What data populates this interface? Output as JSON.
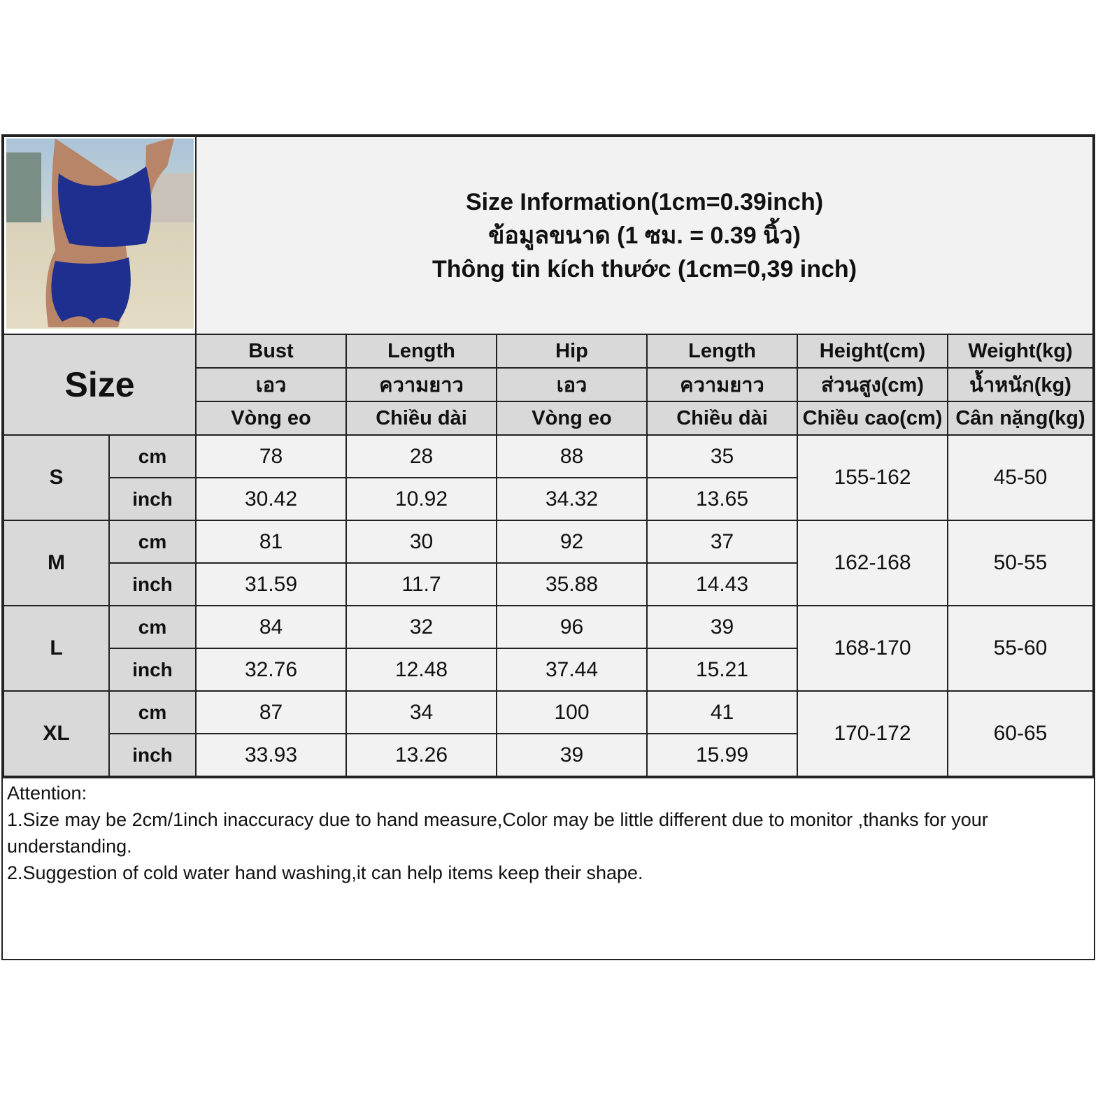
{
  "title_lines": [
    "Size Information(1cm=0.39inch)",
    "ข้อมูลขนาด (1 ซม. = 0.39 นิ้ว)",
    "Thông tin kích thước (1cm=0,39 inch)"
  ],
  "size_label": "Size",
  "columns": [
    {
      "en": "Bust",
      "th": "เอว",
      "vi": "Vòng eo"
    },
    {
      "en": "Length",
      "th": "ความยาว",
      "vi": "Chiều dài"
    },
    {
      "en": "Hip",
      "th": "เอว",
      "vi": "Vòng eo"
    },
    {
      "en": "Length",
      "th": "ความยาว",
      "vi": "Chiều dài"
    },
    {
      "en": "Height(cm)",
      "th": "ส่วนสูง(cm)",
      "vi": "Chiều cao(cm)"
    },
    {
      "en": "Weight(kg)",
      "th": "น้ำหนัก(kg)",
      "vi": "Cân nặng(kg)"
    }
  ],
  "units": [
    "cm",
    "inch"
  ],
  "sizes": [
    {
      "size": "S",
      "cm": [
        "78",
        "28",
        "88",
        "35"
      ],
      "inch": [
        "30.42",
        "10.92",
        "34.32",
        "13.65"
      ],
      "height": "155-162",
      "weight": "45-50"
    },
    {
      "size": "M",
      "cm": [
        "81",
        "30",
        "92",
        "37"
      ],
      "inch": [
        "31.59",
        "11.7",
        "35.88",
        "14.43"
      ],
      "height": "162-168",
      "weight": "50-55"
    },
    {
      "size": "L",
      "cm": [
        "84",
        "32",
        "96",
        "39"
      ],
      "inch": [
        "32.76",
        "12.48",
        "37.44",
        "15.21"
      ],
      "height": "168-170",
      "weight": "55-60"
    },
    {
      "size": "XL",
      "cm": [
        "87",
        "34",
        "100",
        "41"
      ],
      "inch": [
        "33.93",
        "13.26",
        "39",
        "15.99"
      ],
      "height": "170-172",
      "weight": "60-65"
    }
  ],
  "notes": [
    "Attention:",
    "1.Size may be 2cm/1inch inaccuracy due to hand measure,Color may be little different due to monitor ,thanks for your understanding.",
    "2.Suggestion of cold water hand washing,it can help items keep their shape."
  ],
  "colors": {
    "header_fill": "#d9d9d9",
    "cell_fill": "#f2f2f2",
    "garment_blue": "#1f2f8f"
  }
}
